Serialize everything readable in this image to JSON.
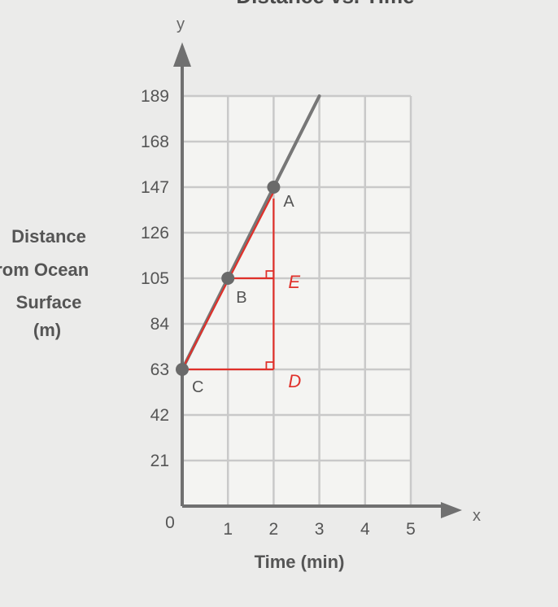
{
  "chart_data": {
    "type": "line",
    "title": "Distance vs. Time",
    "xlabel": "Time (min)",
    "ylabel_lines": [
      "Distance",
      "from Ocean",
      "Surface",
      "(m)"
    ],
    "x_axis_letter": "x",
    "y_axis_letter": "y",
    "origin_label": "0",
    "xlim": [
      0,
      5
    ],
    "ylim": [
      0,
      189
    ],
    "x_ticks": [
      "1",
      "2",
      "3",
      "4",
      "5"
    ],
    "y_ticks": [
      "21",
      "42",
      "63",
      "84",
      "105",
      "126",
      "147",
      "168",
      "189"
    ],
    "grid": true,
    "series": [
      {
        "x": [
          0,
          3
        ],
        "y": [
          63,
          189
        ]
      }
    ],
    "points": [
      {
        "label": "A",
        "x": 2,
        "y": 147
      },
      {
        "label": "B",
        "x": 1,
        "y": 105
      },
      {
        "label": "C",
        "x": 0,
        "y": 63
      }
    ],
    "annotations": [
      {
        "label": "D",
        "x": 2,
        "y": 63
      },
      {
        "label": "E",
        "x": 2,
        "y": 105
      }
    ],
    "annotation_color": "#e0302a"
  }
}
